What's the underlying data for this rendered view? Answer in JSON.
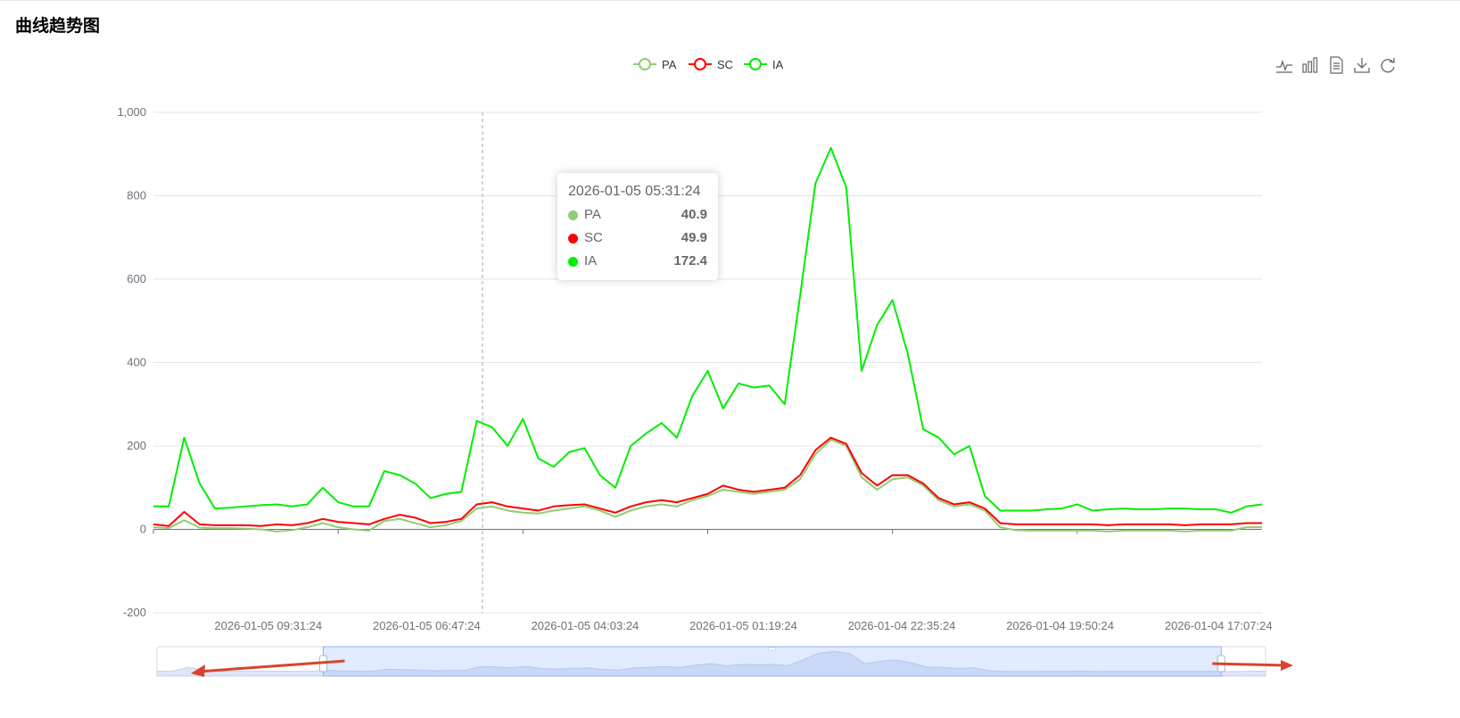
{
  "page": {
    "title": "曲线趋势图"
  },
  "toolbox": [
    {
      "name": "line-chart-icon"
    },
    {
      "name": "bar-chart-icon"
    },
    {
      "name": "data-view-icon"
    },
    {
      "name": "download-icon"
    },
    {
      "name": "restore-icon"
    }
  ],
  "tooltip": {
    "title": "2026-01-05 05:31:24",
    "rows": [
      {
        "name": "PA",
        "value": "40.9",
        "color": "#91cc75"
      },
      {
        "name": "SC",
        "value": "49.9",
        "color": "#ff0000"
      },
      {
        "name": "IA",
        "value": "172.4",
        "color": "#00ee00"
      }
    ]
  },
  "chart_data": {
    "type": "line",
    "title": "",
    "xlabel": "",
    "ylabel": "",
    "ylim": [
      -200,
      1000
    ],
    "yticks": [
      -200,
      0,
      200,
      400,
      600,
      800,
      1000
    ],
    "ytick_labels": [
      "-200",
      "0",
      "200",
      "400",
      "600",
      "800",
      "1,000"
    ],
    "grid": true,
    "legend_position": "top-center",
    "x_tick_labels": [
      "2026-01-05 09:31:24",
      "2026-01-05 06:47:24",
      "2026-01-05 04:03:24",
      "2026-01-05 01:19:24",
      "2026-01-04 22:35:24",
      "2026-01-04 19:50:24",
      "2026-01-04 17:07:24"
    ],
    "x_index_points": [
      0,
      2,
      4,
      6,
      8,
      10,
      12,
      14,
      16,
      18,
      20,
      22,
      24,
      26,
      28,
      30,
      32,
      34,
      36,
      38,
      40,
      42,
      44,
      46,
      48,
      50,
      52,
      54,
      56,
      58,
      60,
      62,
      64,
      66,
      68,
      70,
      72,
      74,
      76,
      78,
      80,
      82,
      84,
      86,
      88,
      90,
      92,
      94,
      96,
      98,
      100,
      102,
      104,
      106,
      108,
      110,
      112,
      114,
      116,
      118,
      120,
      122,
      124,
      126,
      128,
      130,
      132,
      134,
      136,
      138,
      140,
      142,
      144
    ],
    "series": [
      {
        "name": "PA",
        "color": "#91cc75",
        "values": [
          5,
          3,
          22,
          4,
          3,
          3,
          2,
          0,
          -5,
          -2,
          5,
          15,
          5,
          0,
          -3,
          20,
          25,
          15,
          5,
          10,
          20,
          50,
          55,
          45,
          40,
          38,
          45,
          50,
          55,
          45,
          30,
          45,
          55,
          60,
          55,
          70,
          80,
          95,
          90,
          85,
          90,
          95,
          120,
          180,
          215,
          200,
          125,
          95,
          120,
          125,
          105,
          70,
          55,
          60,
          45,
          5,
          -2,
          -3,
          -3,
          -3,
          -3,
          -3,
          -5,
          -3,
          -3,
          -3,
          -3,
          -5,
          -3,
          -3,
          -3,
          5,
          5
        ]
      },
      {
        "name": "SC",
        "color": "#ff0000",
        "values": [
          12,
          8,
          42,
          12,
          10,
          10,
          10,
          8,
          12,
          10,
          15,
          25,
          18,
          15,
          12,
          25,
          35,
          28,
          15,
          18,
          25,
          60,
          65,
          55,
          50,
          45,
          55,
          58,
          60,
          50,
          40,
          55,
          65,
          70,
          65,
          75,
          85,
          105,
          95,
          90,
          95,
          100,
          130,
          190,
          220,
          205,
          135,
          105,
          130,
          130,
          110,
          75,
          60,
          65,
          50,
          15,
          12,
          12,
          12,
          12,
          12,
          12,
          10,
          12,
          12,
          12,
          12,
          10,
          12,
          12,
          12,
          15,
          15
        ]
      },
      {
        "name": "IA",
        "color": "#00ee00",
        "values": [
          55,
          55,
          220,
          110,
          50,
          52,
          55,
          58,
          60,
          55,
          60,
          100,
          65,
          55,
          55,
          140,
          130,
          110,
          75,
          85,
          90,
          260,
          245,
          200,
          265,
          170,
          150,
          185,
          195,
          130,
          100,
          200,
          230,
          255,
          220,
          320,
          380,
          290,
          350,
          340,
          345,
          300,
          560,
          830,
          915,
          820,
          380,
          490,
          550,
          420,
          240,
          220,
          180,
          200,
          80,
          45,
          45,
          45,
          48,
          50,
          60,
          45,
          48,
          50,
          48,
          48,
          50,
          50,
          48,
          48,
          40,
          55,
          60
        ]
      }
    ],
    "data_zoom": {
      "start": 15,
      "end": 96
    }
  }
}
